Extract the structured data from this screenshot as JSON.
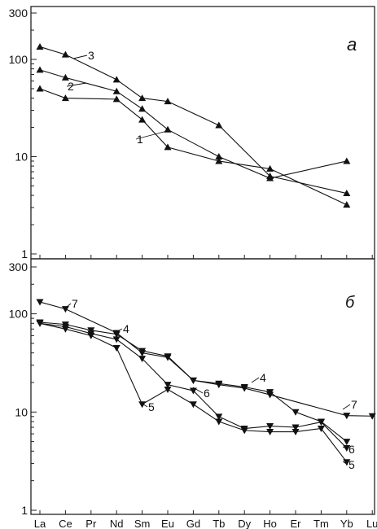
{
  "chart_data": [
    {
      "type": "line",
      "panel_label": "a",
      "yscale": "log",
      "ylim": [
        1,
        300
      ],
      "ytick_labels": [
        "1",
        "10",
        "100",
        "300"
      ],
      "yticks": [
        1,
        10,
        100,
        300
      ],
      "categories": [
        "La",
        "Ce",
        "Pr",
        "Nd",
        "Sm",
        "Eu",
        "Gd",
        "Tb",
        "Dy",
        "Ho",
        "Er",
        "Tm",
        "Yb",
        "Lu"
      ],
      "series": [
        {
          "name": "1",
          "x": [
            "La",
            "Ce",
            "Nd",
            "Sm",
            "Eu",
            "Tb",
            "Ho",
            "Yb"
          ],
          "y": [
            50,
            40,
            39,
            24,
            12.5,
            9,
            7.5,
            3.2
          ]
        },
        {
          "name": "2",
          "x": [
            "La",
            "Ce",
            "Nd",
            "Sm",
            "Eu",
            "Tb",
            "Ho",
            "Yb"
          ],
          "y": [
            78,
            65,
            47,
            31,
            19,
            10,
            6,
            9
          ]
        },
        {
          "name": "3",
          "x": [
            "La",
            "Ce",
            "Nd",
            "Sm",
            "Eu",
            "Tb",
            "Ho",
            "Yb"
          ],
          "y": [
            135,
            112,
            62,
            40,
            37,
            21,
            6.3,
            4.2
          ]
        }
      ],
      "annotations": [
        {
          "text": "1",
          "series": "1"
        },
        {
          "text": "2",
          "series": "2"
        },
        {
          "text": "3",
          "series": "3"
        }
      ]
    },
    {
      "type": "line",
      "panel_label": "б",
      "yscale": "log",
      "ylim": [
        1,
        300
      ],
      "ytick_labels": [
        "1",
        "10",
        "100",
        "300"
      ],
      "yticks": [
        1,
        10,
        100,
        300
      ],
      "categories": [
        "La",
        "Ce",
        "Pr",
        "Nd",
        "Sm",
        "Eu",
        "Gd",
        "Tb",
        "Dy",
        "Ho",
        "Er",
        "Tm",
        "Yb",
        "Lu"
      ],
      "series": [
        {
          "name": "4",
          "x": [
            "La",
            "Ce",
            "Pr",
            "Nd",
            "Sm",
            "Eu",
            "Gd",
            "Tb",
            "Dy",
            "Ho",
            "Er",
            "Tm",
            "Yb"
          ],
          "y": [
            82,
            78,
            68,
            62,
            42,
            37,
            21,
            19.5,
            18,
            16,
            10,
            8,
            5
          ]
        },
        {
          "name": "5",
          "x": [
            "La",
            "Ce",
            "Pr",
            "Nd",
            "Sm",
            "Eu",
            "Gd",
            "Tb",
            "Dy",
            "Ho",
            "Er",
            "Tm",
            "Yb"
          ],
          "y": [
            80,
            70,
            60,
            45,
            12,
            17,
            12,
            8,
            6.5,
            6.3,
            6.3,
            6.8,
            3.1
          ]
        },
        {
          "name": "6",
          "x": [
            "La",
            "Ce",
            "Pr",
            "Nd",
            "Sm",
            "Eu",
            "Gd",
            "Tb",
            "Dy",
            "Ho",
            "Er",
            "Tm",
            "Yb"
          ],
          "y": [
            80,
            74,
            63,
            55,
            35,
            19,
            16.5,
            9,
            6.8,
            7.2,
            7,
            7.9,
            4.3
          ]
        },
        {
          "name": "7",
          "x": [
            "La",
            "Ce",
            "Nd",
            "Sm",
            "Eu",
            "Gd",
            "Tb",
            "Dy",
            "Ho",
            "Yb",
            "Lu"
          ],
          "y": [
            132,
            112,
            64,
            40,
            36,
            21,
            19,
            17.5,
            15,
            9.2,
            9.1
          ]
        }
      ],
      "annotations": [
        {
          "text": "4",
          "series": "4"
        },
        {
          "text": "5",
          "series": "5"
        },
        {
          "text": "6",
          "series": "6"
        },
        {
          "text": "7",
          "series": "7"
        }
      ]
    }
  ]
}
